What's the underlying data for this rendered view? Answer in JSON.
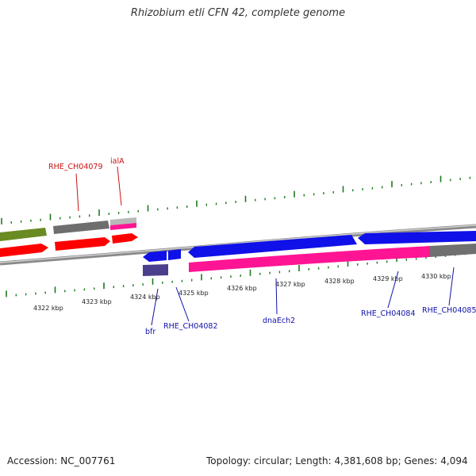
{
  "title": "Rhizobium etli CFN 42, complete genome",
  "footer": {
    "accession": "Accession: NC_007761",
    "summary": "Topology: circular; Length: 4,381,608 bp; Genes: 4,094"
  },
  "colors": {
    "backbone": "#8a8a8a",
    "tick_green": "#1d7a1d",
    "forward_label": "#cc1111",
    "reverse_label": "#1111aa",
    "gene_red": "#ff0000",
    "gene_blue": "#1010e8",
    "gene_magenta": "#ff1493",
    "gene_olive": "#6a8a22",
    "gene_gray": "#707070",
    "gene_navy": "#4a3f8c"
  },
  "scale": {
    "unit": "kbp",
    "labels": [
      "4322 kbp",
      "4323 kbp",
      "4324 kbp",
      "4325 kbp",
      "4326 kbp",
      "4327 kbp",
      "4328 kbp",
      "4329 kbp",
      "4330 kbp"
    ]
  },
  "genes": {
    "forward": [
      "RHE_CH04079",
      "ialA"
    ],
    "reverse": [
      "bfr",
      "RHE_CH04082",
      "dnaEch2",
      "RHE_CH04084",
      "RHE_CH04085"
    ]
  }
}
